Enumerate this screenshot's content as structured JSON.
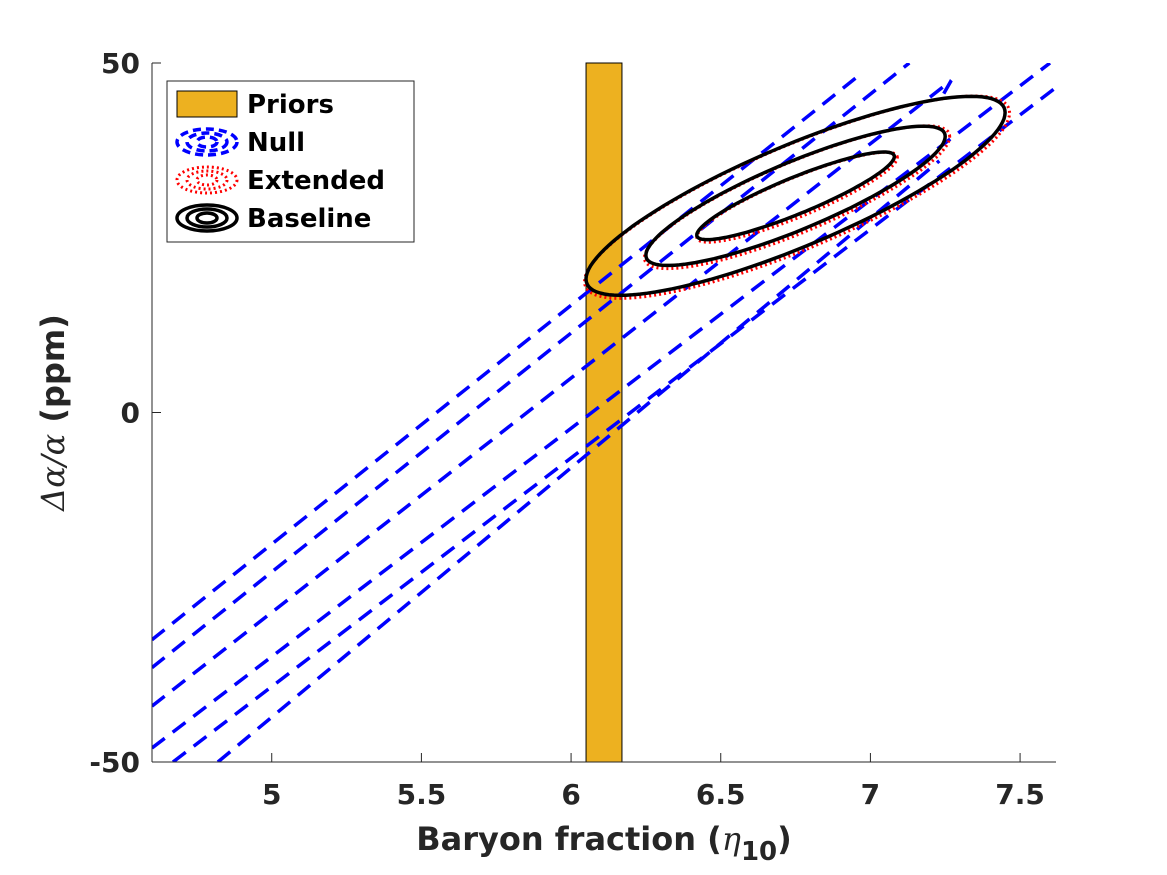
{
  "chart_data": {
    "type": "contour",
    "xlabel": {
      "main": "Baryon fraction (",
      "symbol": "η",
      "sub": "10",
      "close": ")"
    },
    "ylabel": {
      "symbol": "Δα/α",
      "main": " (ppm)"
    },
    "xlim": [
      4.6,
      7.62
    ],
    "ylim": [
      -50,
      50
    ],
    "xticks": [
      5,
      5.5,
      6,
      6.5,
      7,
      7.5
    ],
    "xtick_labels": [
      "5",
      "5.5",
      "6",
      "6.5",
      "7",
      "7.5"
    ],
    "yticks": [
      -50,
      0,
      50
    ],
    "ytick_labels": [
      "-50",
      "0",
      "50"
    ],
    "legend_position": "top-left",
    "legend": [
      {
        "label": "Priors",
        "style": "bar",
        "color": "#EDB120"
      },
      {
        "label": "Null",
        "style": "dashed",
        "color": "#0000FF"
      },
      {
        "label": "Extended",
        "style": "dotted",
        "color": "#FF0000"
      },
      {
        "label": "Baseline",
        "style": "solid",
        "color": "#000000"
      }
    ],
    "priors_band": {
      "x": [
        6.05,
        6.17
      ],
      "y": [
        -50,
        50
      ],
      "color": "#EDB120"
    },
    "null_lines": {
      "color": "#0000FF",
      "segments": [
        [
          [
            4.6,
            -32.5
          ],
          [
            6.97,
            48.5
          ]
        ],
        [
          [
            4.6,
            -36.5
          ],
          [
            7.13,
            50
          ]
        ],
        [
          [
            4.6,
            -42.0
          ],
          [
            7.27,
            47.5
          ],
          [
            7.23,
            44.5
          ]
        ],
        [
          [
            4.6,
            -48.0
          ],
          [
            7.6,
            50
          ]
        ],
        [
          [
            4.67,
            -50
          ],
          [
            7.62,
            46.5
          ]
        ],
        [
          [
            4.82,
            -50
          ],
          [
            7.23,
            36.0
          ]
        ]
      ]
    },
    "baseline_contours": {
      "color": "#000000",
      "center": [
        6.75,
        31
      ],
      "slope_ppm_per_unit": 17,
      "levels": [
        {
          "half_length_eta": 0.33,
          "half_width_ppm": 2.8
        },
        {
          "half_length_eta": 0.5,
          "half_width_ppm": 5.2
        },
        {
          "half_length_eta": 0.7,
          "half_width_ppm": 7.8
        }
      ]
    },
    "extended_contours": {
      "color": "#FF0000",
      "center": [
        6.755,
        30.8
      ],
      "slope_ppm_per_unit": 17,
      "levels": [
        {
          "half_length_eta": 0.335,
          "half_width_ppm": 3.0
        },
        {
          "half_length_eta": 0.51,
          "half_width_ppm": 5.4
        },
        {
          "half_length_eta": 0.71,
          "half_width_ppm": 8.0
        }
      ]
    }
  }
}
